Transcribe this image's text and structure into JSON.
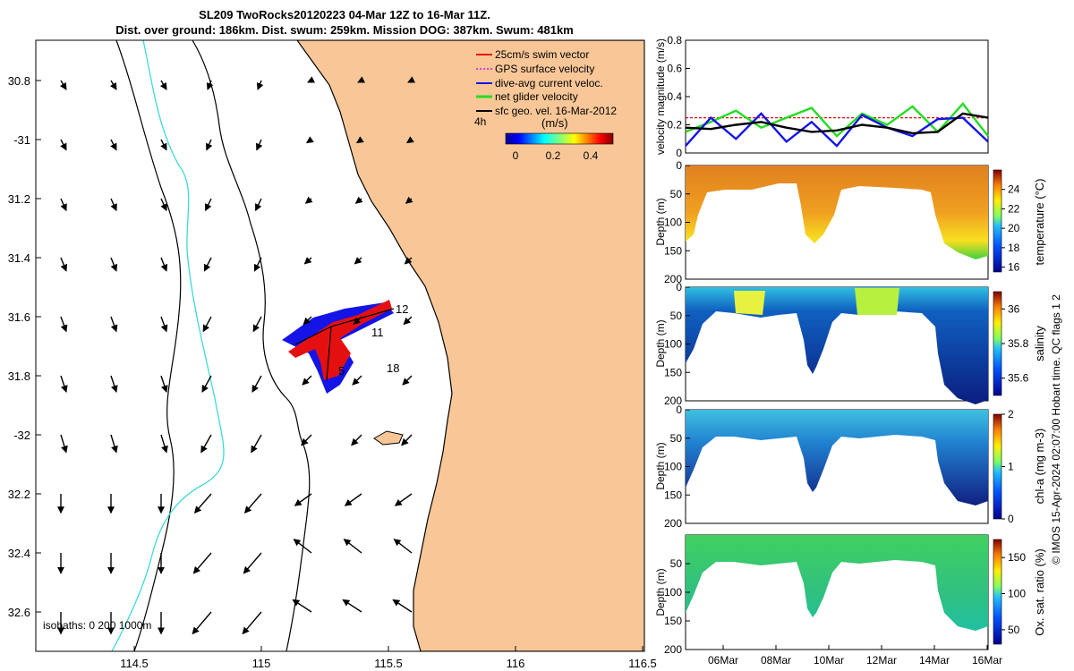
{
  "title_line1": "SL209 TwoRocks20120223 04-Mar 12Z to 16-Mar 11Z.",
  "title_line2": "Dist. over ground: 186km. Dist. swum: 259km. Mission DOG: 387km. Swum: 481km",
  "credit": "© IMOS 15-Apr-2024 02:07:00 Hobart time. QC flags 1  2",
  "colors": {
    "land": "#f9c797",
    "coastline": "#000000",
    "isobath": "#000000",
    "isobath_1000": "#3fd9d9",
    "swim_vector": "#e41010",
    "gps_velocity": "#e03ce0",
    "dive_avg_current": "#1414e6",
    "net_glider_velocity": "#22dd22",
    "sfc_geo_velocity": "#000000"
  },
  "map": {
    "xlabels": [
      "114.5",
      "115",
      "115.5",
      "116",
      "116.5"
    ],
    "ylabels": [
      "30.8",
      "-31",
      "31.2",
      "31.4",
      "31.6",
      "31.8",
      "-32",
      "32.2",
      "32.4",
      "32.6"
    ],
    "legend": [
      {
        "label": "25cm/s swim vector",
        "color_key": "swim_vector"
      },
      {
        "label": "GPS surface velocity",
        "color_key": "gps_velocity"
      },
      {
        "label": "dive-avg current veloc.",
        "color_key": "dive_avg_current"
      },
      {
        "label": "net glider velocity",
        "color_key": "net_glider_velocity"
      },
      {
        "label": "sfc geo. vel. 16-Mar-2012",
        "color_key": "sfc_geo_velocity"
      }
    ],
    "colorbar_unit": "(m/s)",
    "colorbar_ticks": [
      "0",
      "0.2",
      "0.4"
    ],
    "corner_label": "4h",
    "isobaths_label": "isobaths: 0   200  1000m",
    "track_labels": [
      "12",
      "11",
      "5",
      "18"
    ]
  },
  "chart_data": [
    {
      "type": "line",
      "ylabel": "velocity magnitude (m/s)",
      "ylim": [
        0,
        0.8
      ],
      "yticks": [
        "0",
        "0.2",
        "0.4",
        "0.6",
        "0.8"
      ],
      "x": [
        0,
        1,
        2,
        3,
        4,
        5,
        6,
        7,
        8,
        9,
        10,
        11,
        12
      ],
      "series": [
        {
          "color_key": "swim_vector",
          "values": [
            0.25,
            0.25,
            0.25,
            0.25,
            0.25,
            0.25,
            0.25,
            0.25,
            0.25,
            0.25,
            0.25,
            0.25,
            0.25
          ]
        },
        {
          "color_key": "net_glider_velocity",
          "values": [
            0.15,
            0.22,
            0.3,
            0.18,
            0.25,
            0.32,
            0.12,
            0.28,
            0.2,
            0.33,
            0.15,
            0.35,
            0.12
          ]
        },
        {
          "color_key": "dive_avg_current",
          "values": [
            0.05,
            0.25,
            0.1,
            0.28,
            0.08,
            0.22,
            0.05,
            0.27,
            0.18,
            0.12,
            0.24,
            0.25,
            0.08
          ]
        },
        {
          "color_key": "sfc_geo_velocity",
          "values": [
            0.18,
            0.17,
            0.2,
            0.22,
            0.18,
            0.15,
            0.16,
            0.2,
            0.18,
            0.14,
            0.15,
            0.28,
            0.25
          ]
        }
      ]
    },
    {
      "type": "heatmap",
      "ylabel": "Depth (m)",
      "clabel": "temperature (°C)",
      "yticks": [
        "0",
        "50",
        "100",
        "150",
        "200"
      ],
      "cticks": [
        "16",
        "18",
        "20",
        "22",
        "24"
      ],
      "clim": [
        15.5,
        26
      ]
    },
    {
      "type": "heatmap",
      "ylabel": "Depth (m)",
      "clabel": "salinity",
      "yticks": [
        "0",
        "50",
        "100",
        "150",
        "200"
      ],
      "cticks": [
        "35.6",
        "35.8",
        "36"
      ],
      "clim": [
        35.5,
        36.1
      ]
    },
    {
      "type": "heatmap",
      "ylabel": "Depth (m)",
      "clabel": "chl-a (mg m-3)",
      "yticks": [
        "0",
        "50",
        "100",
        "150",
        "200"
      ],
      "cticks": [
        "0",
        "1",
        "2"
      ],
      "clim": [
        0,
        2
      ]
    },
    {
      "type": "heatmap",
      "ylabel": "Depth (m)",
      "clabel": "Ox. sat. ratio (%)",
      "yticks": [
        "50",
        "100",
        "150",
        "200"
      ],
      "cticks": [
        "50",
        "100",
        "150"
      ],
      "clim": [
        30,
        175
      ],
      "xticks": [
        "06Mar",
        "08Mar",
        "10Mar",
        "12Mar",
        "14Mar",
        "16Mar"
      ]
    }
  ]
}
